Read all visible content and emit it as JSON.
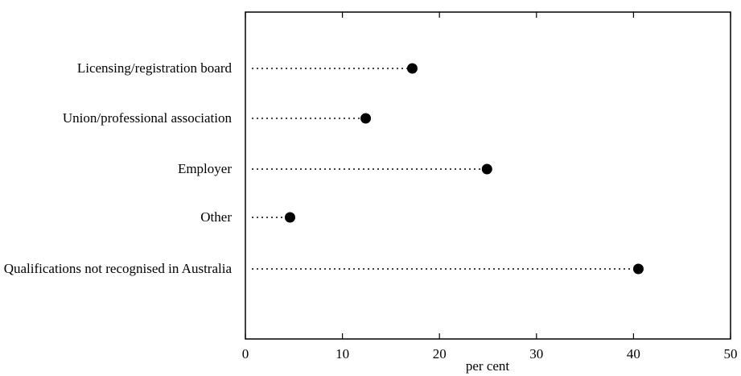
{
  "chart_data": {
    "type": "dot",
    "categories": [
      "Licensing/registration board",
      "Union/professional association",
      "Employer",
      "Other",
      "Qualifications not recognised in Australia"
    ],
    "values": [
      17.2,
      12.4,
      24.9,
      4.6,
      40.5
    ],
    "color": "#000000",
    "xlabel": "per cent",
    "xlim": [
      0,
      50
    ],
    "xticks": [
      0,
      10,
      20,
      30,
      40,
      50
    ]
  }
}
